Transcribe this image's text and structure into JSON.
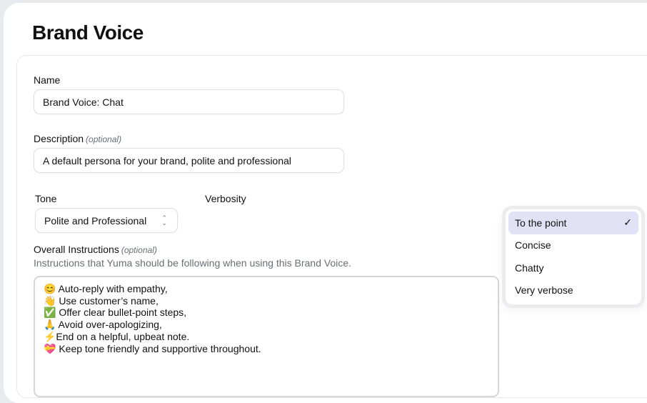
{
  "page": {
    "title": "Brand Voice"
  },
  "form": {
    "name": {
      "label": "Name",
      "value": "Brand Voice: Chat"
    },
    "description": {
      "label": "Description",
      "optional": "(optional)",
      "value": "A default persona for your brand, polite and professional"
    },
    "tone": {
      "label": "Tone",
      "value": "Polite and Professional",
      "icon": "chevron-up-down-icon"
    },
    "verbosity": {
      "label": "Verbosity",
      "selected": "To the point",
      "options": [
        "To the point",
        "Concise",
        "Chatty",
        "Very verbose"
      ],
      "check_icon": "✓"
    },
    "instructions": {
      "label": "Overall Instructions",
      "optional": "(optional)",
      "hint": "Instructions that Yuma should be following when using this Brand Voice.",
      "value": "😊 Auto-reply with empathy,\n👋 Use customer’s name,\n✅ Offer clear bullet-point steps,\n🙏 Avoid over-apologizing,\n⚡End on a helpful, upbeat note.\n💝 Keep tone friendly and supportive throughout."
    }
  },
  "colors": {
    "selected_bg": "#e3e1f5",
    "muted_text": "#6b6e76"
  }
}
